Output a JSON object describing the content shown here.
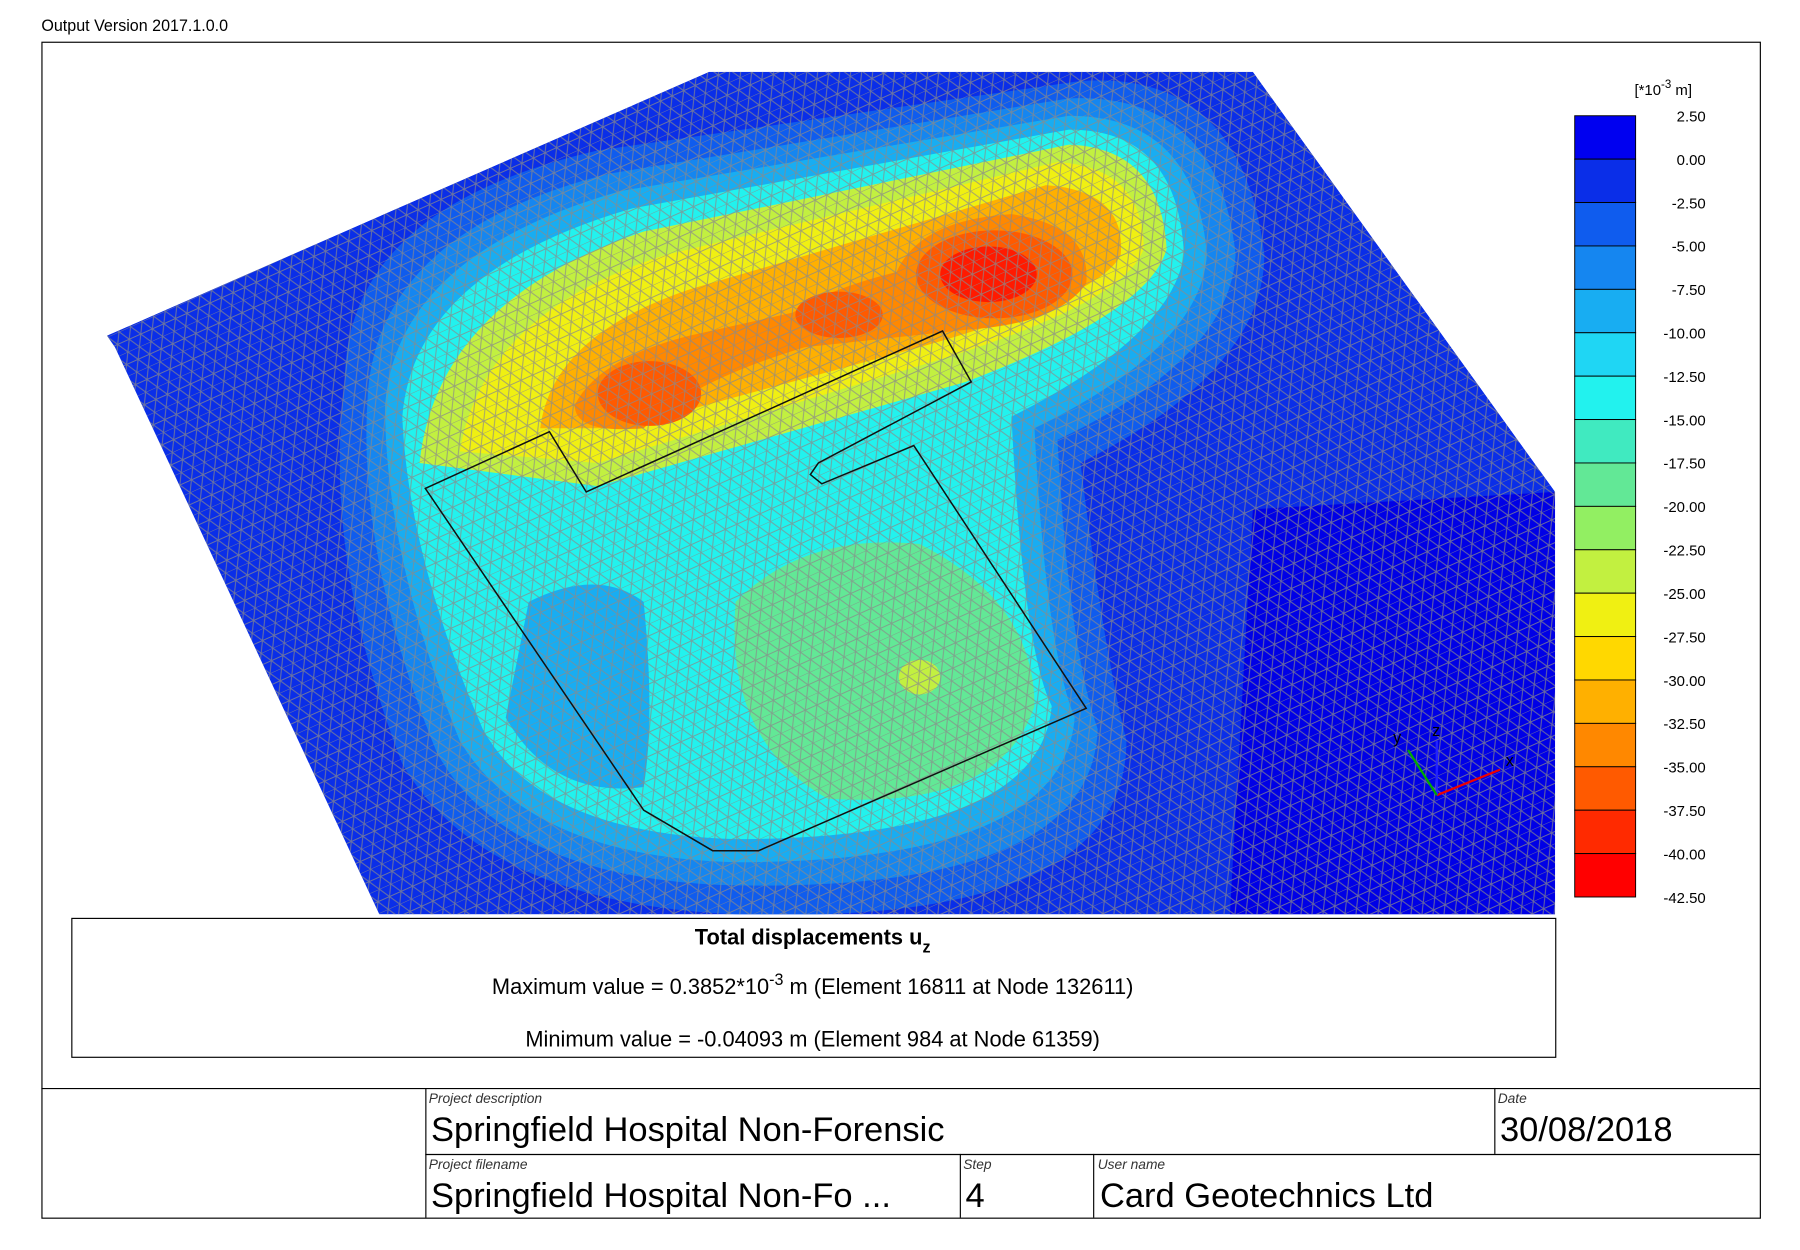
{
  "header": {
    "version": "Output Version 2017.1.0.0"
  },
  "legend": {
    "unit_pre": "[*10",
    "unit_exp": "-3",
    "unit_post": " m]",
    "labels": [
      "2.50",
      "0.00",
      "-2.50",
      "-5.00",
      "-7.50",
      "-10.00",
      "-12.50",
      "-15.00",
      "-17.50",
      "-20.00",
      "-22.50",
      "-25.00",
      "-27.50",
      "-30.00",
      "-32.50",
      "-35.00",
      "-37.50",
      "-40.00",
      "-42.50"
    ],
    "colors": [
      "#0000f0",
      "#0a2ee8",
      "#0f5cee",
      "#1586f0",
      "#18adf2",
      "#1fd6f4",
      "#22f2ee",
      "#40eac0",
      "#62e896",
      "#92ef62",
      "#c2f040",
      "#f0f012",
      "#ffd800",
      "#ffb000",
      "#ff8800",
      "#ff5a00",
      "#ff2a00",
      "#ff0000"
    ]
  },
  "caption": {
    "title": "Total displacements u",
    "title_sub": "z",
    "max_pre": "Maximum value = 0.3852*10",
    "max_exp": "-3",
    "max_post": " m (Element 16811 at Node 132611)",
    "min": "Minimum value = -0.04093 m (Element 984 at Node 61359)"
  },
  "title_block": {
    "project_description_label": "Project description",
    "project_description": "Springfield Hospital Non-Forensic",
    "date_label": "Date",
    "date": "30/08/2018",
    "project_filename_label": "Project filename",
    "project_filename": "Springfield Hospital Non-Fo ...",
    "step_label": "Step",
    "step": "4",
    "user_name_label": "User name",
    "user_name": "Card Geotechnics Ltd"
  },
  "axes": {
    "x": "x",
    "y": "y",
    "z": "z"
  }
}
